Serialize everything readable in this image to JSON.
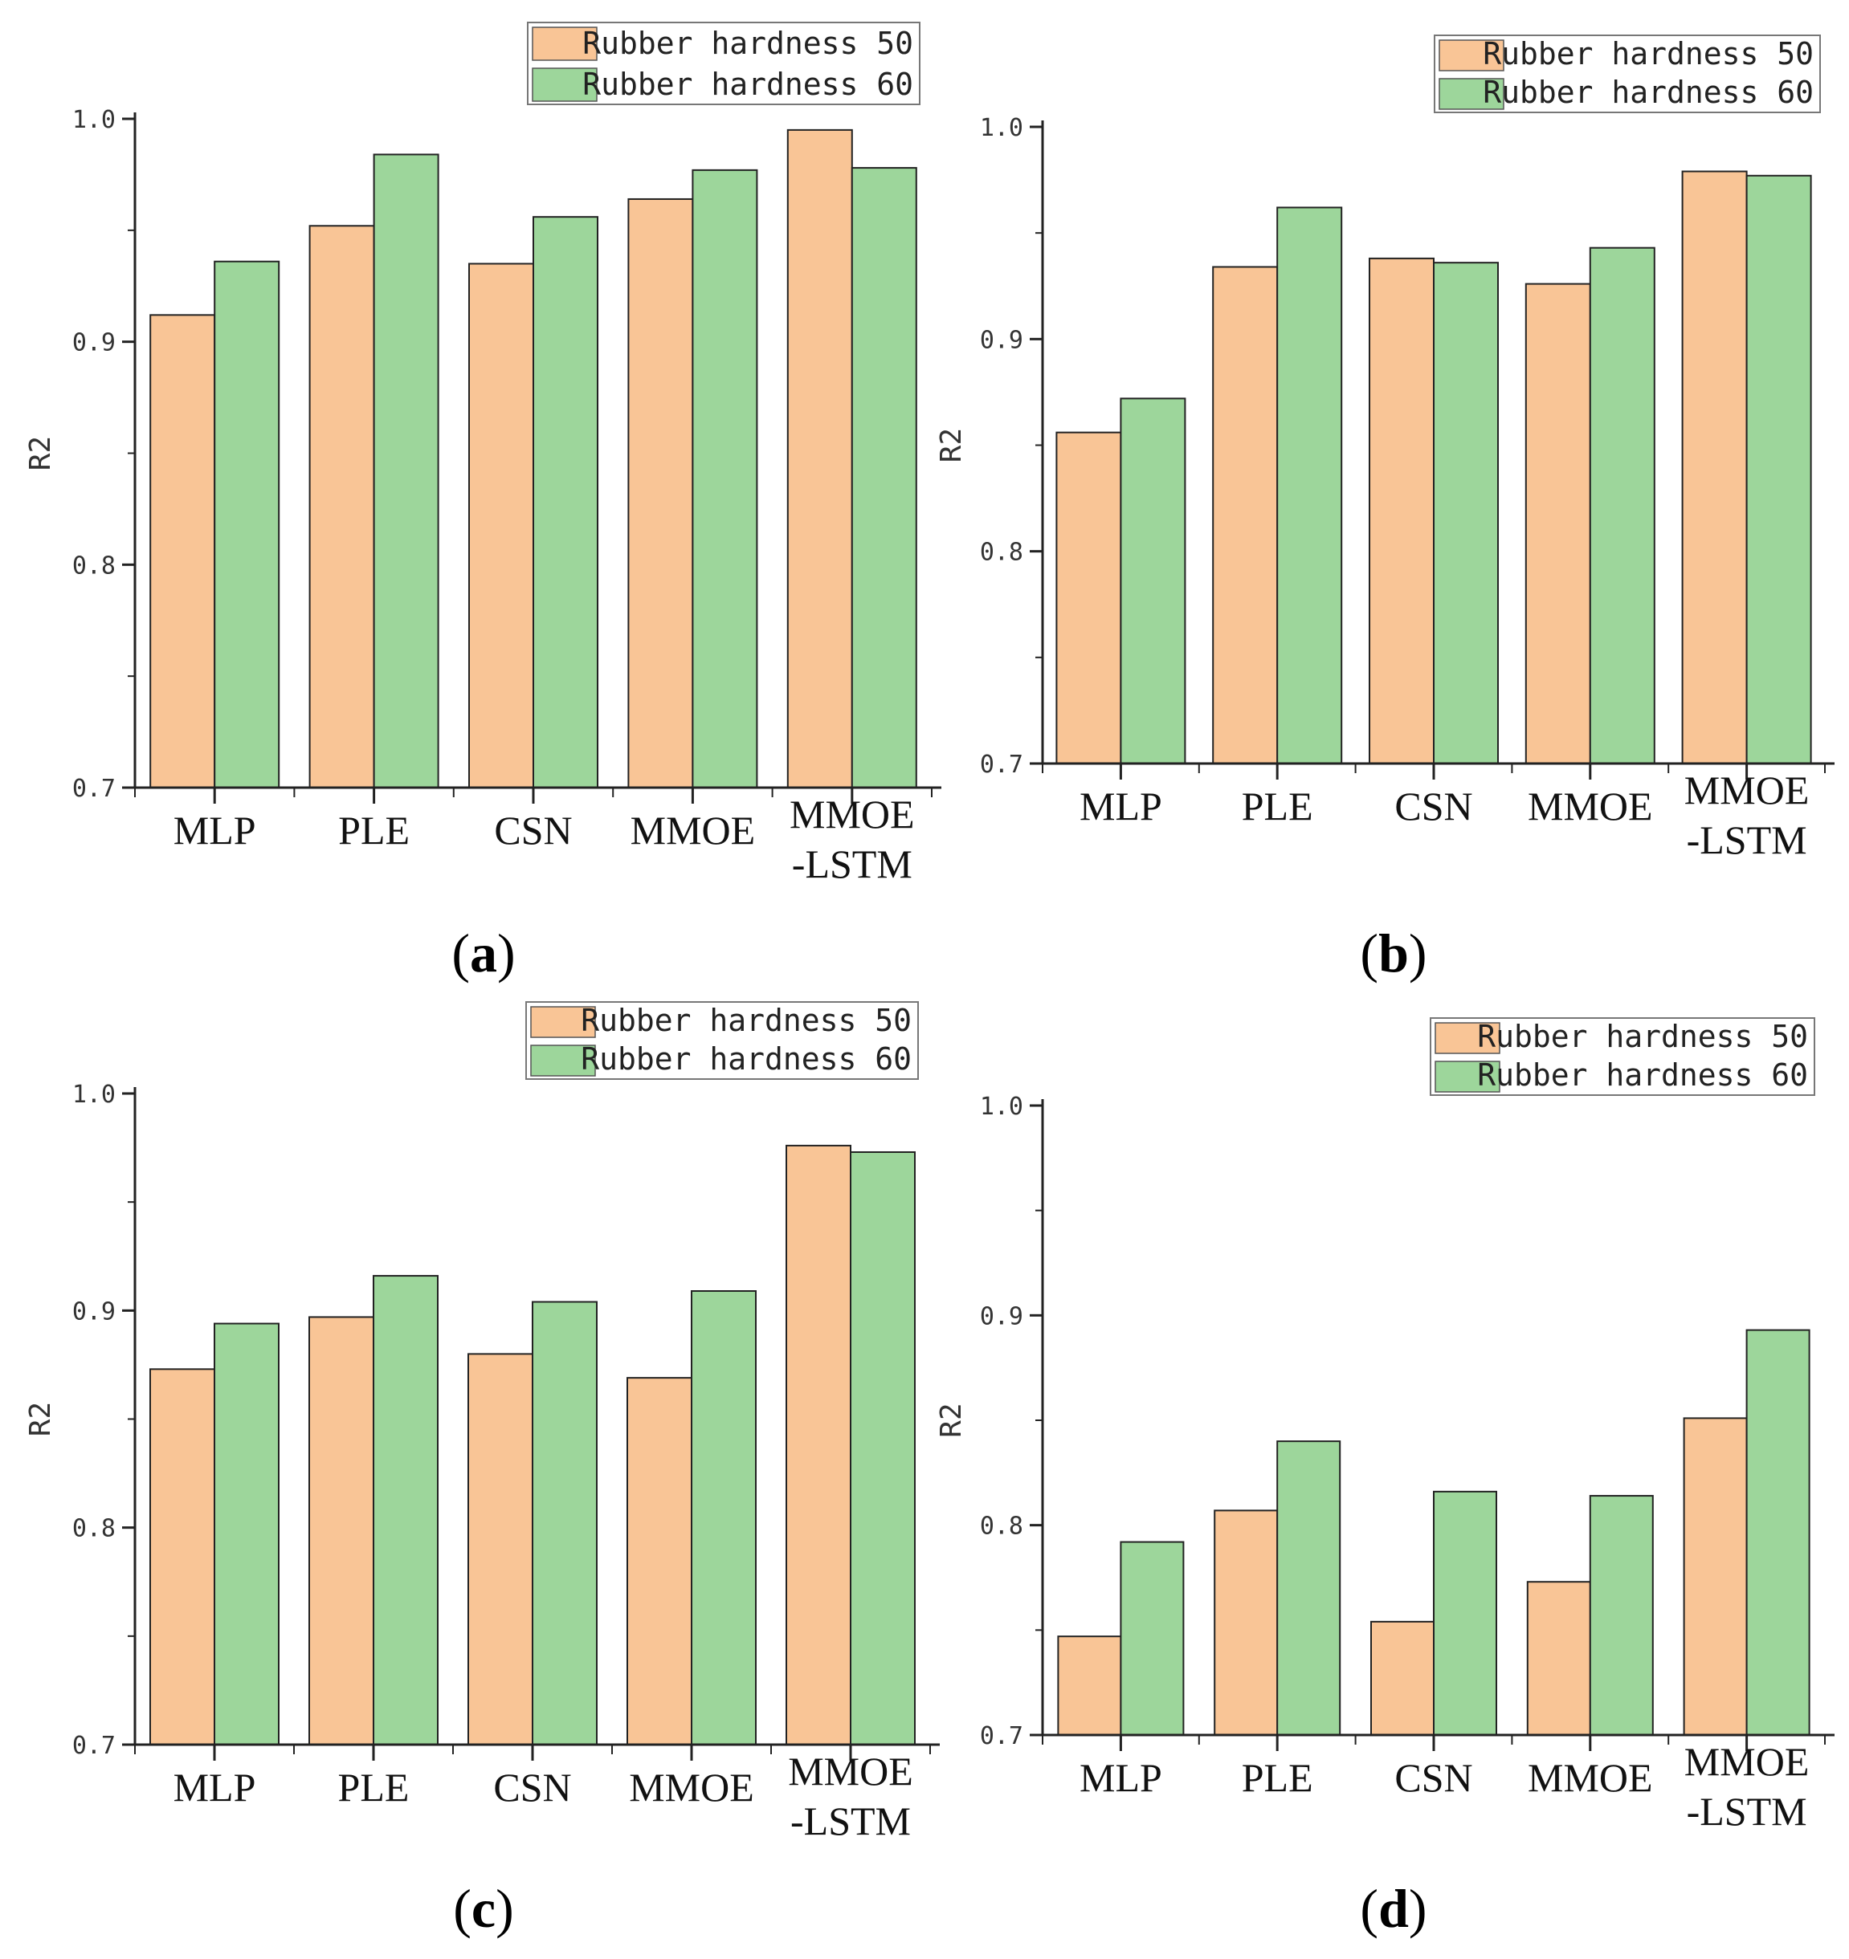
{
  "colors": {
    "series1": "#f9c596",
    "series2": "#9dd69b",
    "stroke": "#222222"
  },
  "chart_data": [
    {
      "type": "bar",
      "panel_label_parts": [
        "(",
        "a",
        ")"
      ],
      "categories": [
        "MLP",
        "PLE",
        "CSN",
        "MMOE",
        "MMOE\n-LSTM"
      ],
      "series": [
        {
          "name": "Rubber hardness 50",
          "values": [
            0.912,
            0.952,
            0.935,
            0.964,
            0.995
          ]
        },
        {
          "name": "Rubber hardness 60",
          "values": [
            0.936,
            0.984,
            0.956,
            0.977,
            0.978
          ]
        }
      ],
      "ylabel": "R2",
      "ylim": [
        0.7,
        1.0
      ],
      "yticks": [
        "0.7",
        "0.8",
        "0.9",
        "1.0"
      ],
      "legend": "top-right",
      "grid": false
    },
    {
      "type": "bar",
      "panel_label_parts": [
        "(",
        "b",
        ")"
      ],
      "categories": [
        "MLP",
        "PLE",
        "CSN",
        "MMOE",
        "MMOE\n-LSTM"
      ],
      "series": [
        {
          "name": "Rubber hardness 50",
          "values": [
            0.856,
            0.934,
            0.938,
            0.926,
            0.979
          ]
        },
        {
          "name": "Rubber hardness 60",
          "values": [
            0.872,
            0.962,
            0.936,
            0.943,
            0.977
          ]
        }
      ],
      "ylabel": "R2",
      "ylim": [
        0.7,
        1.0
      ],
      "yticks": [
        "0.7",
        "0.8",
        "0.9",
        "1.0"
      ],
      "legend": "top-right",
      "grid": false
    },
    {
      "type": "bar",
      "panel_label_parts": [
        "(",
        "c",
        ")"
      ],
      "categories": [
        "MLP",
        "PLE",
        "CSN",
        "MMOE",
        "MMOE\n-LSTM"
      ],
      "series": [
        {
          "name": "Rubber hardness 50",
          "values": [
            0.873,
            0.897,
            0.88,
            0.869,
            0.976
          ]
        },
        {
          "name": "Rubber hardness 60",
          "values": [
            0.894,
            0.916,
            0.904,
            0.909,
            0.973
          ]
        }
      ],
      "ylabel": "R2",
      "ylim": [
        0.7,
        1.0
      ],
      "yticks": [
        "0.7",
        "0.8",
        "0.9",
        "1.0"
      ],
      "legend": "top-right",
      "grid": false
    },
    {
      "type": "bar",
      "panel_label_parts": [
        "(",
        "d",
        ")"
      ],
      "categories": [
        "MLP",
        "PLE",
        "CSN",
        "MMOE",
        "MMOE\n-LSTM"
      ],
      "series": [
        {
          "name": "Rubber hardness 50",
          "values": [
            0.747,
            0.807,
            0.754,
            0.773,
            0.851
          ]
        },
        {
          "name": "Rubber hardness 60",
          "values": [
            0.792,
            0.84,
            0.816,
            0.814,
            0.893
          ]
        }
      ],
      "ylabel": "R2",
      "ylim": [
        0.7,
        1.0
      ],
      "yticks": [
        "0.7",
        "0.8",
        "0.9",
        "1.0"
      ],
      "legend": "top-right",
      "grid": false
    }
  ]
}
